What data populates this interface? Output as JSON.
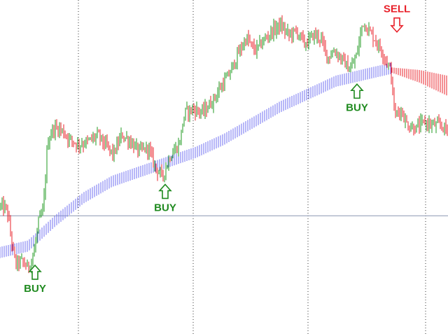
{
  "chart_data": {
    "type": "candlestick",
    "title": "",
    "xlabel": "",
    "ylabel": "",
    "ylim": [
      0,
      100
    ],
    "grid": "vertical-dotted",
    "horizontal_line": 35,
    "colors": {
      "bull": "#1f9a1f",
      "bear": "#e8202a",
      "band_up": "#6f6ff0",
      "band_down": "#e8202a",
      "buy": "#1f8a1f",
      "sell": "#e8202a",
      "grid": "#333333",
      "hline": "#8a96b0"
    },
    "price_path": [
      [
        0,
        38
      ],
      [
        10,
        37
      ],
      [
        16,
        28
      ],
      [
        22,
        20
      ],
      [
        30,
        21
      ],
      [
        40,
        19
      ],
      [
        48,
        23
      ],
      [
        55,
        33
      ],
      [
        62,
        37
      ],
      [
        68,
        58
      ],
      [
        76,
        62
      ],
      [
        86,
        62
      ],
      [
        98,
        59
      ],
      [
        112,
        57
      ],
      [
        126,
        58
      ],
      [
        140,
        60
      ],
      [
        150,
        57
      ],
      [
        162,
        54
      ],
      [
        174,
        60
      ],
      [
        186,
        58
      ],
      [
        198,
        55
      ],
      [
        212,
        56
      ],
      [
        222,
        50
      ],
      [
        232,
        47
      ],
      [
        244,
        54
      ],
      [
        256,
        57
      ],
      [
        264,
        67
      ],
      [
        276,
        68
      ],
      [
        290,
        67
      ],
      [
        302,
        70
      ],
      [
        316,
        75
      ],
      [
        328,
        79
      ],
      [
        340,
        85
      ],
      [
        352,
        90
      ],
      [
        364,
        86
      ],
      [
        376,
        89
      ],
      [
        388,
        92
      ],
      [
        400,
        94
      ],
      [
        412,
        91
      ],
      [
        424,
        92
      ],
      [
        436,
        88
      ],
      [
        448,
        91
      ],
      [
        458,
        90
      ],
      [
        468,
        84
      ],
      [
        478,
        86
      ],
      [
        490,
        83
      ],
      [
        500,
        80
      ],
      [
        510,
        85
      ],
      [
        518,
        95
      ],
      [
        528,
        92
      ],
      [
        540,
        88
      ],
      [
        550,
        84
      ],
      [
        558,
        80
      ],
      [
        564,
        66
      ],
      [
        572,
        68
      ],
      [
        582,
        63
      ],
      [
        594,
        62
      ],
      [
        606,
        64
      ],
      [
        618,
        63
      ],
      [
        630,
        63
      ],
      [
        640,
        61
      ]
    ],
    "band_up": [
      [
        0,
        23
      ],
      [
        40,
        25
      ],
      [
        80,
        33
      ],
      [
        120,
        40
      ],
      [
        160,
        45
      ],
      [
        200,
        48
      ],
      [
        240,
        51
      ],
      [
        280,
        54
      ],
      [
        320,
        58
      ],
      [
        360,
        63
      ],
      [
        400,
        68
      ],
      [
        440,
        72
      ],
      [
        480,
        76
      ],
      [
        520,
        78
      ],
      [
        560,
        80
      ]
    ],
    "band_down": [
      [
        560,
        80
      ],
      [
        600,
        78
      ],
      [
        640,
        75
      ]
    ],
    "signals": [
      {
        "type": "buy",
        "label": "BUY",
        "x": 50,
        "y": 21
      },
      {
        "type": "buy",
        "label": "BUY",
        "x": 236,
        "y": 46
      },
      {
        "type": "buy",
        "label": "BUY",
        "x": 510,
        "y": 77
      },
      {
        "type": "sell",
        "label": "SELL",
        "x": 567,
        "y": 94
      }
    ]
  }
}
